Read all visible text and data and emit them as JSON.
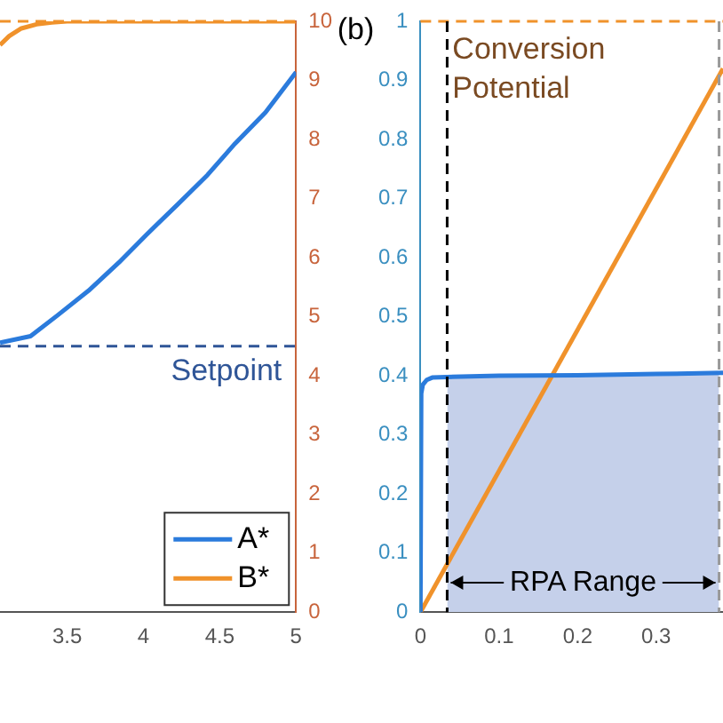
{
  "chart_data": [
    {
      "type": "line",
      "legend": "bottom right",
      "grid": false,
      "xlim": [
        3.06,
        5
      ],
      "xticks": [
        3.5,
        4,
        4.5,
        5
      ],
      "y2lim": [
        0,
        10
      ],
      "y2ticks": [
        0,
        1,
        2,
        3,
        4,
        5,
        6,
        7,
        8,
        9,
        10
      ],
      "series": [
        {
          "name": "A*",
          "color": "#2b7bdc",
          "axis": "y2",
          "x": [
            3.06,
            3.26,
            3.44,
            3.64,
            3.84,
            4.02,
            4.22,
            4.42,
            4.6,
            4.8,
            5
          ],
          "values": [
            4.56,
            4.67,
            5.03,
            5.44,
            5.92,
            6.39,
            6.89,
            7.4,
            7.93,
            8.46,
            9.14
          ]
        },
        {
          "name": "B*",
          "color": "#f0922b",
          "axis": "y2",
          "x": [
            3.06,
            3.12,
            3.2,
            3.3,
            3.4,
            3.5,
            4,
            4.5,
            5
          ],
          "values": [
            9.6,
            9.75,
            9.88,
            9.95,
            9.98,
            10,
            10,
            10,
            10
          ]
        }
      ],
      "ref_lines": [
        {
          "axis": "y2",
          "value": 4.5,
          "label": "Setpoint",
          "color": "#2f5597",
          "line_style": "dashed"
        },
        {
          "axis": "y2",
          "value": 10,
          "label": null,
          "color": "#f0922b",
          "line_style": "dashed"
        }
      ]
    },
    {
      "type": "line",
      "title": "(b)",
      "grid": false,
      "xlim": [
        0,
        0.385
      ],
      "xticks": [
        0,
        0.1,
        0.2,
        0.3
      ],
      "ylim": [
        0,
        1
      ],
      "yticks": [
        0,
        0.1,
        0.2,
        0.3,
        0.4,
        0.5,
        0.6,
        0.7,
        0.8,
        0.9,
        1
      ],
      "series": [
        {
          "type": "area",
          "color": "#c5d0ea",
          "x": [
            0.034,
            0.1,
            0.2,
            0.3,
            0.38
          ],
          "values": [
            0.398,
            0.4,
            0.401,
            0.403,
            0.405
          ]
        },
        {
          "color": "#2b7bdc",
          "x": [
            0,
            0.001,
            0.003,
            0.008,
            0.015,
            0.034,
            0.1,
            0.2,
            0.3,
            0.385
          ],
          "values": [
            0,
            0.37,
            0.385,
            0.393,
            0.397,
            0.398,
            0.4,
            0.401,
            0.403,
            0.405
          ]
        },
        {
          "color": "#f0922b",
          "x": [
            0,
            0.385
          ],
          "values": [
            0,
            0.92
          ]
        }
      ],
      "ref_lines": [
        {
          "axis": "y",
          "value": 1,
          "label": "Conversion Potential",
          "color": "#f0922b",
          "line_style": "dashed"
        },
        {
          "axis": "x",
          "value": 0.034,
          "label": null,
          "color": "#000000",
          "line_style": "dashed"
        },
        {
          "axis": "x",
          "value": 0.38,
          "label": null,
          "color": "#999999",
          "line_style": "dashed"
        }
      ],
      "annotations": [
        {
          "text": "RPA Range",
          "x": 0.034,
          "y": 0.05
        }
      ]
    }
  ]
}
